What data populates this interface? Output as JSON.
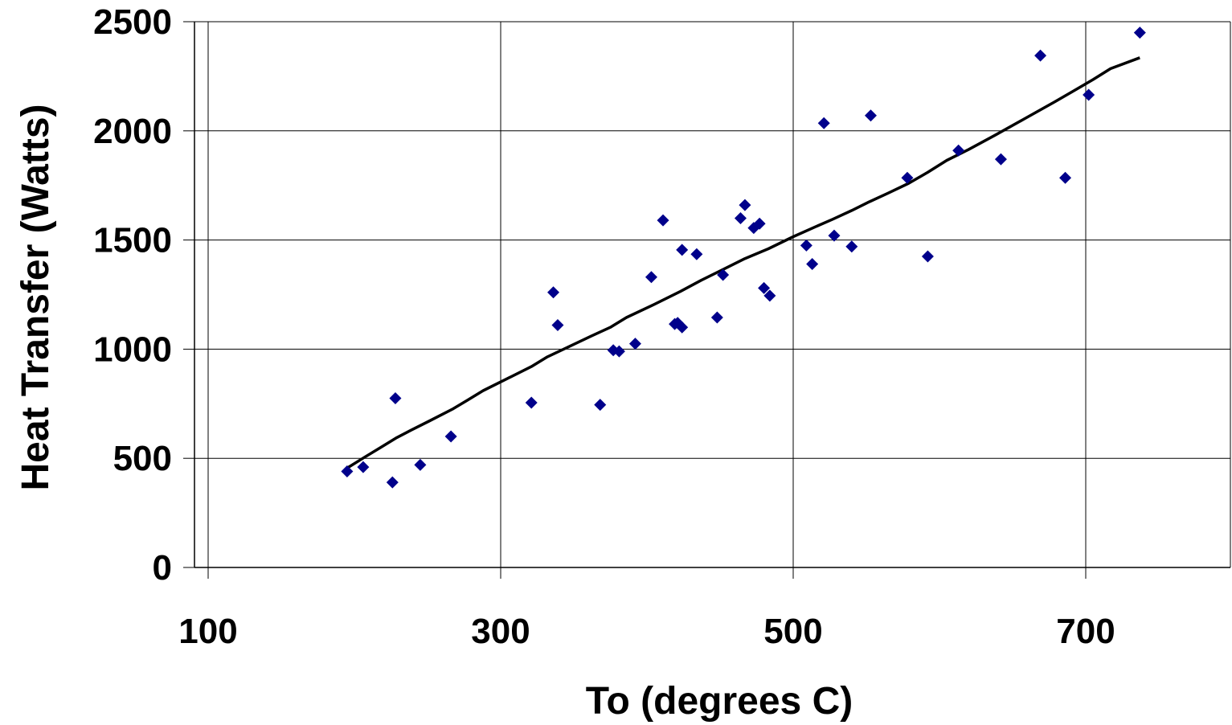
{
  "chart_data": {
    "type": "scatter",
    "title": "",
    "xlabel": "To (degrees C)",
    "ylabel": "Heat Transfer (Watts)",
    "xlim": [
      100,
      800
    ],
    "ylim": [
      0,
      2500
    ],
    "x_ticks": [
      100,
      300,
      500,
      700
    ],
    "y_ticks": [
      0,
      500,
      1000,
      1500,
      2000,
      2500
    ],
    "x_tick_labels": [
      "100",
      "300",
      "500",
      "700"
    ],
    "y_tick_labels": [
      "0",
      "500",
      "1000",
      "1500",
      "2000",
      "2500"
    ],
    "grid": true,
    "legend": "none",
    "colors": {
      "markers": "#00008B",
      "trend_line": "#000000",
      "grid": "#000000"
    },
    "series": [
      {
        "type": "scatter",
        "marker": "diamond",
        "x": [
          195,
          206,
          226,
          228,
          245,
          266,
          321,
          336,
          339,
          368,
          377,
          381,
          392,
          403,
          411,
          419,
          421,
          424,
          424,
          434,
          448,
          452,
          464,
          467,
          473,
          477,
          480,
          484,
          509,
          513,
          521,
          528,
          540,
          553,
          578,
          592,
          613,
          642,
          669,
          686,
          702,
          737
        ],
        "y": [
          440,
          460,
          390,
          775,
          470,
          600,
          755,
          1260,
          1110,
          745,
          995,
          990,
          1025,
          1330,
          1590,
          1115,
          1120,
          1100,
          1455,
          1435,
          1145,
          1340,
          1600,
          1660,
          1555,
          1575,
          1280,
          1245,
          1475,
          1390,
          2035,
          1520,
          1470,
          2070,
          1785,
          1425,
          1910,
          1870,
          2345,
          1785,
          2165,
          2450
        ]
      },
      {
        "type": "line",
        "x": [
          195,
          207,
          218,
          229,
          239,
          251,
          267,
          277,
          288,
          306,
          321,
          332,
          343,
          362,
          375,
          386,
          405,
          423,
          437,
          452,
          467,
          483,
          500,
          515,
          527,
          540,
          552,
          565,
          579,
          592,
          605,
          620,
          638,
          658,
          678,
          691,
          705,
          717,
          737
        ],
        "y": [
          455,
          505,
          550,
          595,
          630,
          670,
          725,
          765,
          810,
          870,
          920,
          965,
          1000,
          1060,
          1100,
          1145,
          1205,
          1265,
          1315,
          1365,
          1415,
          1460,
          1515,
          1560,
          1595,
          1635,
          1675,
          1715,
          1760,
          1810,
          1865,
          1915,
          1980,
          2055,
          2130,
          2180,
          2235,
          2285,
          2335
        ]
      }
    ]
  }
}
